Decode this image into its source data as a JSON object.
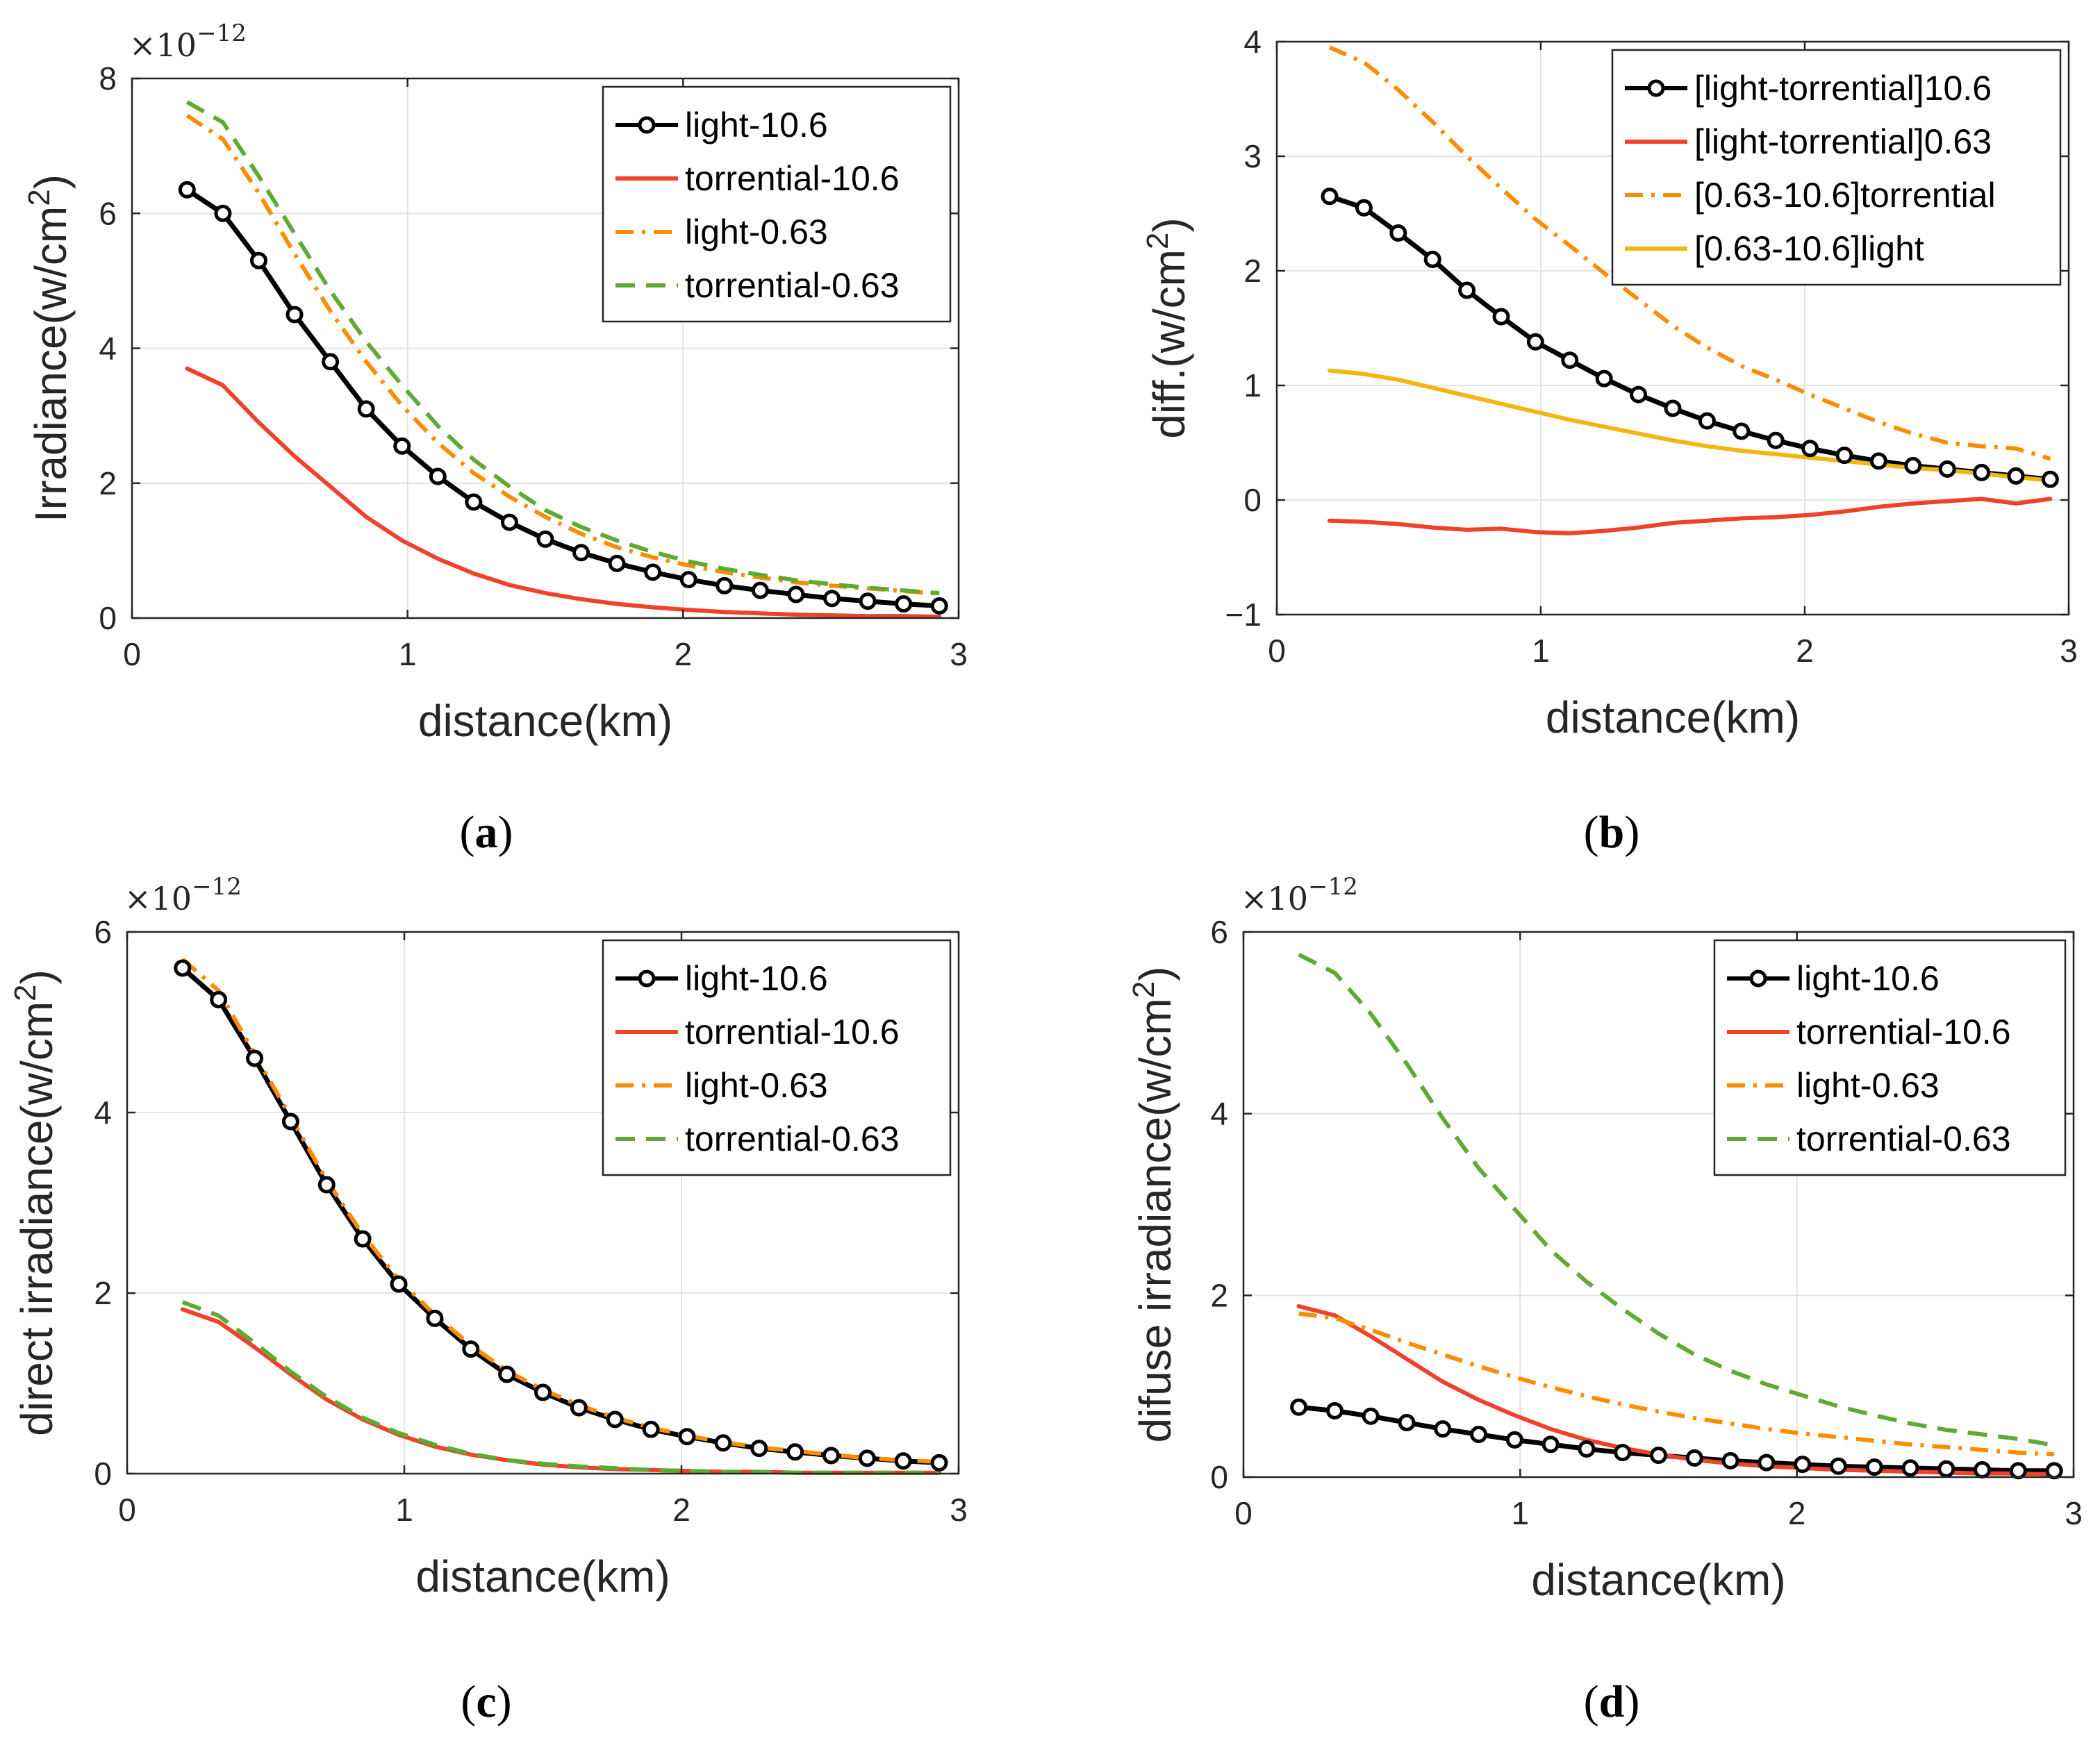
{
  "chart_data": [
    {
      "type": "line",
      "panel_label": "a",
      "exponent_base": "×10",
      "exponent_power": "−12",
      "xlabel": "distance(km)",
      "ylabel": "Irradiance(w/cm",
      "ylabel_sup": "2",
      "ylabel_end": ")",
      "xlim": [
        0,
        3
      ],
      "ylim": [
        0,
        8
      ],
      "xticks": [
        "0",
        "1",
        "2",
        "3"
      ],
      "yticks": [
        "0",
        "2",
        "4",
        "6",
        "8"
      ],
      "grid": true,
      "legend_position": "top-right",
      "x": [
        0.2,
        0.33,
        0.46,
        0.59,
        0.72,
        0.85,
        0.98,
        1.11,
        1.24,
        1.37,
        1.5,
        1.63,
        1.76,
        1.89,
        2.02,
        2.15,
        2.28,
        2.41,
        2.54,
        2.67,
        2.8,
        2.93
      ],
      "series": [
        {
          "name": "light-10.6",
          "color": "#000000",
          "style": "solid-circle",
          "values": [
            6.35,
            6.0,
            5.3,
            4.5,
            3.8,
            3.1,
            2.55,
            2.1,
            1.72,
            1.42,
            1.17,
            0.97,
            0.81,
            0.68,
            0.57,
            0.48,
            0.41,
            0.35,
            0.29,
            0.25,
            0.21,
            0.18
          ]
        },
        {
          "name": "torrential-10.6",
          "color": "#f0412a",
          "style": "solid",
          "values": [
            3.7,
            3.45,
            2.9,
            2.4,
            1.95,
            1.5,
            1.15,
            0.88,
            0.66,
            0.49,
            0.37,
            0.28,
            0.21,
            0.16,
            0.12,
            0.09,
            0.07,
            0.05,
            0.04,
            0.03,
            0.03,
            0.02
          ]
        },
        {
          "name": "light-0.63",
          "color": "#ff8c00",
          "style": "dashdot",
          "values": [
            7.45,
            7.1,
            6.3,
            5.4,
            4.55,
            3.8,
            3.15,
            2.6,
            2.15,
            1.8,
            1.5,
            1.25,
            1.05,
            0.9,
            0.78,
            0.68,
            0.6,
            0.53,
            0.48,
            0.44,
            0.4,
            0.36
          ]
        },
        {
          "name": "torrential-0.63",
          "color": "#5eaa32",
          "style": "dash",
          "values": [
            7.65,
            7.35,
            6.55,
            5.7,
            4.85,
            4.1,
            3.45,
            2.85,
            2.35,
            1.95,
            1.6,
            1.35,
            1.15,
            0.98,
            0.84,
            0.73,
            0.64,
            0.56,
            0.5,
            0.45,
            0.41,
            0.37
          ]
        }
      ]
    },
    {
      "type": "line",
      "panel_label": "b",
      "exponent_base": "",
      "exponent_power": "",
      "xlabel": "distance(km)",
      "ylabel": "diff.(w/cm",
      "ylabel_sup": "2",
      "ylabel_end": ")",
      "xlim": [
        0,
        3
      ],
      "ylim": [
        -1,
        4
      ],
      "xticks": [
        "0",
        "1",
        "2",
        "3"
      ],
      "yticks": [
        "−1",
        "0",
        "1",
        "2",
        "3",
        "4"
      ],
      "grid": true,
      "legend_position": "top-right",
      "x": [
        0.2,
        0.33,
        0.46,
        0.59,
        0.72,
        0.85,
        0.98,
        1.11,
        1.24,
        1.37,
        1.5,
        1.63,
        1.76,
        1.89,
        2.02,
        2.15,
        2.28,
        2.41,
        2.54,
        2.67,
        2.8,
        2.93
      ],
      "series": [
        {
          "name": "[light-torrential]10.6",
          "color": "#000000",
          "style": "solid-circle",
          "values": [
            2.65,
            2.55,
            2.33,
            2.1,
            1.83,
            1.6,
            1.38,
            1.22,
            1.06,
            0.92,
            0.8,
            0.69,
            0.6,
            0.52,
            0.45,
            0.39,
            0.34,
            0.3,
            0.27,
            0.24,
            0.21,
            0.18
          ]
        },
        {
          "name": "[light-torrential]0.63",
          "color": "#f0412a",
          "style": "solid",
          "values": [
            -0.18,
            -0.19,
            -0.21,
            -0.24,
            -0.26,
            -0.25,
            -0.28,
            -0.29,
            -0.27,
            -0.24,
            -0.2,
            -0.18,
            -0.16,
            -0.15,
            -0.13,
            -0.1,
            -0.06,
            -0.03,
            -0.01,
            0.01,
            -0.03,
            0.01
          ]
        },
        {
          "name": "[0.63-10.6]torrential",
          "color": "#ff8c00",
          "style": "dashdot",
          "values": [
            3.95,
            3.82,
            3.58,
            3.3,
            3.0,
            2.72,
            2.45,
            2.22,
            1.98,
            1.75,
            1.52,
            1.33,
            1.17,
            1.05,
            0.92,
            0.8,
            0.68,
            0.58,
            0.5,
            0.47,
            0.45,
            0.36
          ]
        },
        {
          "name": "[0.63-10.6]light",
          "color": "#f2b70f",
          "style": "solid",
          "values": [
            1.13,
            1.1,
            1.05,
            0.98,
            0.91,
            0.84,
            0.77,
            0.7,
            0.64,
            0.58,
            0.52,
            0.47,
            0.43,
            0.4,
            0.37,
            0.34,
            0.31,
            0.28,
            0.26,
            0.23,
            0.2,
            0.17
          ]
        }
      ]
    },
    {
      "type": "line",
      "panel_label": "c",
      "exponent_base": "×10",
      "exponent_power": "−12",
      "xlabel": "distance(km)",
      "ylabel": "direct irradiance(w/cm",
      "ylabel_sup": "2",
      "ylabel_end": ")",
      "xlim": [
        0,
        3
      ],
      "ylim": [
        0,
        6
      ],
      "xticks": [
        "0",
        "1",
        "2",
        "3"
      ],
      "yticks": [
        "0",
        "2",
        "4",
        "6"
      ],
      "grid": true,
      "legend_position": "top-right",
      "x": [
        0.2,
        0.33,
        0.46,
        0.59,
        0.72,
        0.85,
        0.98,
        1.11,
        1.24,
        1.37,
        1.5,
        1.63,
        1.76,
        1.89,
        2.02,
        2.15,
        2.28,
        2.41,
        2.54,
        2.67,
        2.8,
        2.93
      ],
      "series": [
        {
          "name": "light-10.6",
          "color": "#000000",
          "style": "solid-circle",
          "values": [
            5.6,
            5.25,
            4.6,
            3.9,
            3.2,
            2.6,
            2.1,
            1.72,
            1.38,
            1.1,
            0.9,
            0.73,
            0.6,
            0.49,
            0.41,
            0.34,
            0.28,
            0.24,
            0.2,
            0.17,
            0.14,
            0.12
          ]
        },
        {
          "name": "torrential-10.6",
          "color": "#f0412a",
          "style": "solid",
          "values": [
            1.82,
            1.68,
            1.4,
            1.1,
            0.82,
            0.6,
            0.43,
            0.3,
            0.21,
            0.15,
            0.1,
            0.07,
            0.05,
            0.04,
            0.03,
            0.02,
            0.02,
            0.01,
            0.01,
            0.01,
            0.01,
            0.01
          ]
        },
        {
          "name": "light-0.63",
          "color": "#ff8c00",
          "style": "dashdot",
          "values": [
            5.7,
            5.35,
            4.65,
            3.95,
            3.25,
            2.65,
            2.15,
            1.76,
            1.42,
            1.14,
            0.93,
            0.76,
            0.62,
            0.51,
            0.42,
            0.35,
            0.29,
            0.25,
            0.21,
            0.17,
            0.15,
            0.13
          ]
        },
        {
          "name": "torrential-0.63",
          "color": "#5eaa32",
          "style": "dash",
          "values": [
            1.9,
            1.75,
            1.45,
            1.13,
            0.85,
            0.62,
            0.45,
            0.32,
            0.22,
            0.15,
            0.11,
            0.08,
            0.06,
            0.04,
            0.03,
            0.02,
            0.02,
            0.01,
            0.01,
            0.01,
            0.01,
            0.01
          ]
        }
      ]
    },
    {
      "type": "line",
      "panel_label": "d",
      "exponent_base": "×10",
      "exponent_power": "−12",
      "xlabel": "distance(km)",
      "ylabel": "difuse irradiance(w/cm",
      "ylabel_sup": "2",
      "ylabel_end": ")",
      "xlim": [
        0,
        3
      ],
      "ylim": [
        0,
        6
      ],
      "xticks": [
        "0",
        "1",
        "2",
        "3"
      ],
      "yticks": [
        "0",
        "2",
        "4",
        "6"
      ],
      "grid": true,
      "legend_position": "top-right",
      "x": [
        0.2,
        0.33,
        0.46,
        0.59,
        0.72,
        0.85,
        0.98,
        1.11,
        1.24,
        1.37,
        1.5,
        1.63,
        1.76,
        1.89,
        2.02,
        2.15,
        2.28,
        2.41,
        2.54,
        2.67,
        2.8,
        2.93
      ],
      "series": [
        {
          "name": "light-10.6",
          "color": "#000000",
          "style": "solid-circle",
          "values": [
            0.77,
            0.73,
            0.67,
            0.6,
            0.53,
            0.47,
            0.41,
            0.36,
            0.31,
            0.27,
            0.24,
            0.21,
            0.18,
            0.16,
            0.14,
            0.12,
            0.11,
            0.1,
            0.09,
            0.08,
            0.07,
            0.07
          ]
        },
        {
          "name": "torrential-10.6",
          "color": "#f0412a",
          "style": "solid",
          "values": [
            1.88,
            1.78,
            1.55,
            1.3,
            1.05,
            0.85,
            0.68,
            0.53,
            0.41,
            0.32,
            0.25,
            0.19,
            0.15,
            0.12,
            0.1,
            0.08,
            0.07,
            0.06,
            0.05,
            0.04,
            0.04,
            0.03
          ]
        },
        {
          "name": "light-0.63",
          "color": "#ff8c00",
          "style": "dashdot",
          "values": [
            1.8,
            1.75,
            1.62,
            1.48,
            1.35,
            1.22,
            1.1,
            0.99,
            0.89,
            0.8,
            0.72,
            0.65,
            0.59,
            0.53,
            0.48,
            0.44,
            0.4,
            0.36,
            0.33,
            0.3,
            0.27,
            0.25
          ]
        },
        {
          "name": "torrential-0.63",
          "color": "#5eaa32",
          "style": "dash",
          "values": [
            5.75,
            5.55,
            5.1,
            4.55,
            3.95,
            3.4,
            2.95,
            2.5,
            2.15,
            1.85,
            1.58,
            1.35,
            1.17,
            1.02,
            0.9,
            0.78,
            0.68,
            0.59,
            0.52,
            0.47,
            0.42,
            0.35
          ]
        }
      ]
    }
  ]
}
